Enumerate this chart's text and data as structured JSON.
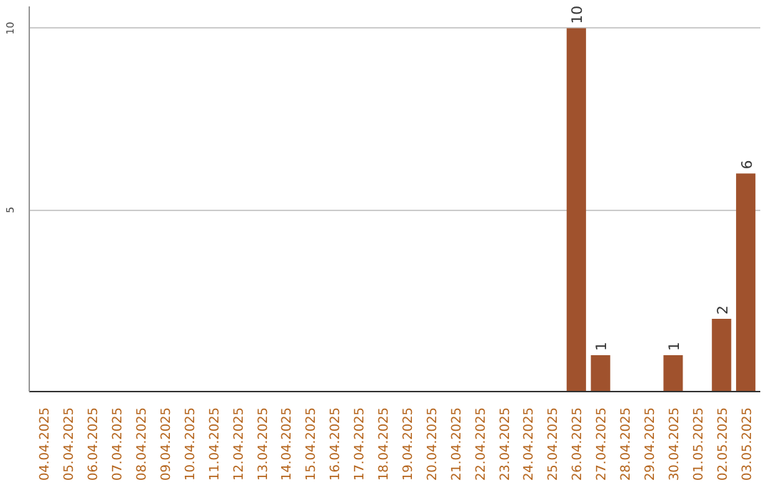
{
  "chart_data": {
    "type": "bar",
    "categories": [
      "04.04.2025",
      "05.04.2025",
      "06.04.2025",
      "07.04.2025",
      "08.04.2025",
      "09.04.2025",
      "10.04.2025",
      "11.04.2025",
      "12.04.2025",
      "13.04.2025",
      "14.04.2025",
      "15.04.2025",
      "16.04.2025",
      "17.04.2025",
      "18.04.2025",
      "19.04.2025",
      "20.04.2025",
      "21.04.2025",
      "22.04.2025",
      "23.04.2025",
      "24.04.2025",
      "25.04.2025",
      "26.04.2025",
      "27.04.2025",
      "28.04.2025",
      "29.04.2025",
      "30.04.2025",
      "01.05.2025",
      "02.05.2025",
      "03.05.2025"
    ],
    "values": [
      0,
      0,
      0,
      0,
      0,
      0,
      0,
      0,
      0,
      0,
      0,
      0,
      0,
      0,
      0,
      0,
      0,
      0,
      0,
      0,
      0,
      0,
      10,
      1,
      0,
      0,
      1,
      0,
      2,
      6
    ],
    "value_labels": [
      null,
      null,
      null,
      null,
      null,
      null,
      null,
      null,
      null,
      null,
      null,
      null,
      null,
      null,
      null,
      null,
      null,
      null,
      null,
      null,
      null,
      null,
      "10",
      "1",
      null,
      null,
      "1",
      null,
      "2",
      "6"
    ],
    "color": "#a0522d",
    "ylim": [
      0,
      10.6
    ],
    "yticks": [
      5,
      10
    ],
    "grid": "y"
  }
}
